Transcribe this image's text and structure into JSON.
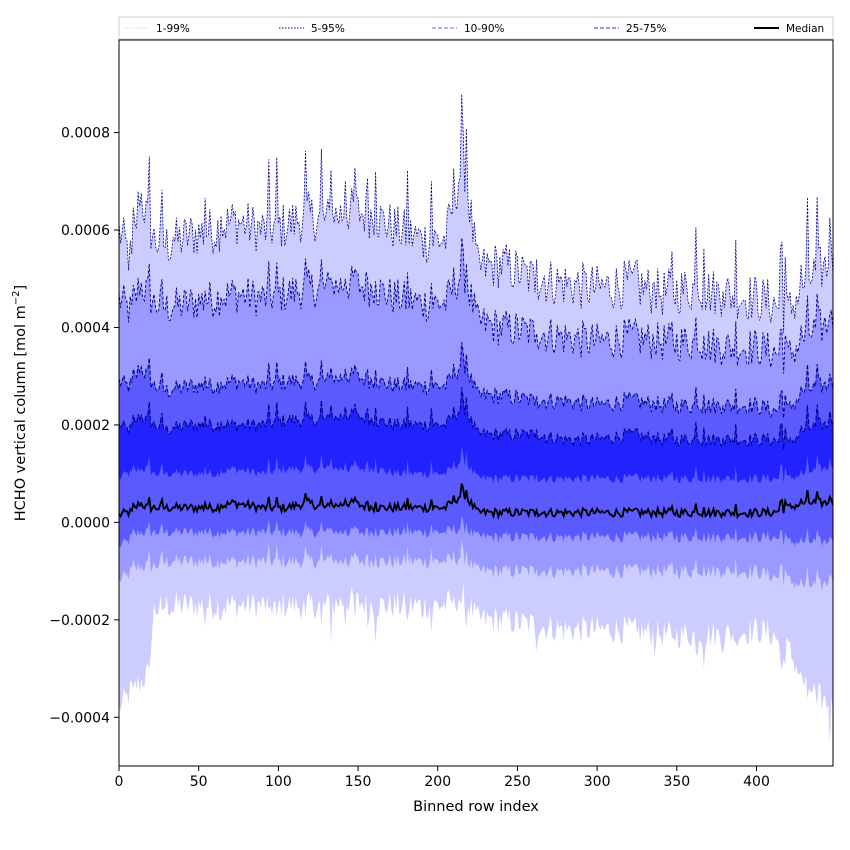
{
  "chart_data": {
    "type": "area",
    "xlabel": "Binned row index",
    "ylabel_main": "HCHO vertical column [mol m",
    "ylabel_sup": "−2",
    "ylabel_end": "]",
    "xlim": [
      0,
      448
    ],
    "ylim": [
      -0.0005,
      0.00099
    ],
    "x_ticks": [
      0,
      50,
      100,
      150,
      200,
      250,
      300,
      350,
      400
    ],
    "x_tick_labels": [
      "0",
      "50",
      "100",
      "150",
      "200",
      "250",
      "300",
      "350",
      "400"
    ],
    "y_ticks": [
      -0.0004,
      -0.0002,
      0.0,
      0.0002,
      0.0004,
      0.0006,
      0.0008
    ],
    "y_tick_labels": [
      "−0.0004",
      "−0.0002",
      "0.0000",
      "0.0002",
      "0.0004",
      "0.0006",
      "0.0008"
    ],
    "legend_position": "top, above plot, single row",
    "legend": [
      {
        "label": "1-99%",
        "style": "dotted",
        "color": "#d0d0ff"
      },
      {
        "label": "5-95%",
        "style": "dotted",
        "color": "#00008b"
      },
      {
        "label": "10-90%",
        "style": "dashed",
        "color": "#6a6af0"
      },
      {
        "label": "25-75%",
        "style": "dashed",
        "color": "#3030c8"
      },
      {
        "label": "Median",
        "style": "solid",
        "color": "#000000"
      }
    ],
    "band_colors": {
      "p1_99": "#ccccff",
      "p5_95": "#9999ff",
      "p10_90": "#5a5aff",
      "p25_75": "#2222ff",
      "median": "#000000",
      "edge": "#00008b"
    },
    "x_key": [
      0,
      5,
      8,
      13,
      18,
      22,
      30,
      45,
      60,
      72,
      90,
      105,
      118,
      130,
      144,
      160,
      175,
      190,
      205,
      216,
      225,
      240,
      260,
      280,
      300,
      320,
      340,
      360,
      380,
      400,
      410,
      420,
      430,
      440,
      448
    ],
    "series": [
      {
        "name": "99%",
        "values": [
          0.0006,
          0.00056,
          0.00053,
          0.00068,
          0.00062,
          0.00058,
          0.00057,
          0.00059,
          0.0006,
          0.00062,
          0.0006,
          0.00061,
          0.00063,
          0.00062,
          0.00064,
          0.00063,
          0.0006,
          0.00058,
          0.00058,
          0.00075,
          0.00052,
          0.00053,
          0.0005,
          0.00049,
          0.00048,
          0.00049,
          0.00047,
          0.00048,
          0.00047,
          0.00046,
          0.00045,
          0.00043,
          0.00049,
          0.00052,
          0.00053
        ]
      },
      {
        "name": "95%",
        "values": [
          0.00046,
          0.00044,
          0.00043,
          0.00049,
          0.00047,
          0.00045,
          0.00044,
          0.00045,
          0.00046,
          0.00047,
          0.00046,
          0.00047,
          0.00048,
          0.00048,
          0.00049,
          0.00048,
          0.00046,
          0.00045,
          0.00045,
          0.00052,
          0.00041,
          0.0004,
          0.00039,
          0.00038,
          0.00037,
          0.00038,
          0.00037,
          0.00037,
          0.00036,
          0.00036,
          0.00035,
          0.00034,
          0.00038,
          0.0004,
          0.00041
        ]
      },
      {
        "name": "90%",
        "values": [
          0.00029,
          0.00028,
          0.00028,
          0.00032,
          0.0003,
          0.00028,
          0.00027,
          0.00028,
          0.00028,
          0.00029,
          0.00028,
          0.00029,
          0.00029,
          0.00029,
          0.0003,
          0.00029,
          0.00028,
          0.00028,
          0.00028,
          0.00033,
          0.00026,
          0.00026,
          0.00025,
          0.00025,
          0.00024,
          0.00025,
          0.00024,
          0.00024,
          0.00024,
          0.00024,
          0.00023,
          0.00023,
          0.00027,
          0.00028,
          0.00028
        ]
      },
      {
        "name": "75%",
        "values": [
          0.0002,
          0.00019,
          0.00019,
          0.00022,
          0.00021,
          0.0002,
          0.00019,
          0.0002,
          0.0002,
          0.0002,
          0.0002,
          0.00021,
          0.00021,
          0.00021,
          0.00022,
          0.00021,
          0.0002,
          0.0002,
          0.0002,
          0.00024,
          0.00018,
          0.00018,
          0.00018,
          0.00017,
          0.00017,
          0.00018,
          0.00017,
          0.00017,
          0.00017,
          0.00017,
          0.00017,
          0.00016,
          0.00019,
          0.0002,
          0.0002
        ]
      },
      {
        "name": "Median",
        "values": [
          1.5e-05,
          2e-05,
          2e-05,
          4e-05,
          3e-05,
          3e-05,
          3e-05,
          3e-05,
          3e-05,
          4e-05,
          3e-05,
          3e-05,
          4e-05,
          3e-05,
          4e-05,
          3e-05,
          3e-05,
          3e-05,
          3e-05,
          6e-05,
          2e-05,
          2e-05,
          2e-05,
          2e-05,
          2e-05,
          2e-05,
          2e-05,
          2e-05,
          2e-05,
          2e-05,
          2e-05,
          3e-05,
          4e-05,
          4e-05,
          4e-05
        ]
      },
      {
        "name": "25%",
        "values": [
          9e-05,
          0.0001,
          0.0001,
          0.00011,
          0.00011,
          0.0001,
          0.0001,
          0.0001,
          0.0001,
          0.00011,
          0.0001,
          0.00011,
          0.00011,
          0.00011,
          0.00011,
          0.00011,
          0.0001,
          0.0001,
          0.0001,
          0.00013,
          9e-05,
          9e-05,
          9e-05,
          9e-05,
          9e-05,
          9e-05,
          9e-05,
          9e-05,
          9e-05,
          9e-05,
          9e-05,
          9e-05,
          0.0001,
          0.00011,
          0.00011
        ]
      },
      {
        "name": "10%",
        "values": [
          -5e-05,
          -4e-05,
          -3e-05,
          -2e-05,
          -2e-05,
          -2e-05,
          -2e-05,
          -2e-05,
          -2e-05,
          -2e-05,
          -2e-05,
          -2e-05,
          -2e-05,
          -2e-05,
          -2e-05,
          -2e-05,
          -2e-05,
          -2e-05,
          -2e-05,
          -1e-05,
          -3e-05,
          -3e-05,
          -3e-05,
          -3e-05,
          -3e-05,
          -3e-05,
          -3e-05,
          -3e-05,
          -3e-05,
          -3e-05,
          -3e-05,
          -4e-05,
          -4e-05,
          -4e-05,
          -4e-05
        ]
      },
      {
        "name": "5%",
        "values": [
          -0.00012,
          -0.00011,
          -0.0001,
          -9e-05,
          -9e-05,
          -9e-05,
          -8e-05,
          -8e-05,
          -8e-05,
          -8e-05,
          -8e-05,
          -8e-05,
          -8e-05,
          -8e-05,
          -8e-05,
          -8e-05,
          -8e-05,
          -8e-05,
          -8e-05,
          -7e-05,
          -0.0001,
          -0.0001,
          -0.0001,
          -0.0001,
          -0.0001,
          -0.0001,
          -0.0001,
          -0.0001,
          -0.0001,
          -0.0001,
          -0.00011,
          -0.00012,
          -0.00013,
          -0.00013,
          -0.00012
        ]
      },
      {
        "name": "1%",
        "values": [
          -0.00038,
          -0.00036,
          -0.00034,
          -0.00033,
          -0.00031,
          -0.00018,
          -0.00017,
          -0.00017,
          -0.00017,
          -0.00017,
          -0.00017,
          -0.00017,
          -0.00017,
          -0.00017,
          -0.00016,
          -0.00017,
          -0.00017,
          -0.00017,
          -0.00017,
          -0.00015,
          -0.0002,
          -0.0002,
          -0.00021,
          -0.00022,
          -0.00022,
          -0.00022,
          -0.00023,
          -0.00023,
          -0.00023,
          -0.00022,
          -0.00023,
          -0.00026,
          -0.00033,
          -0.00036,
          -0.00038
        ]
      }
    ]
  }
}
